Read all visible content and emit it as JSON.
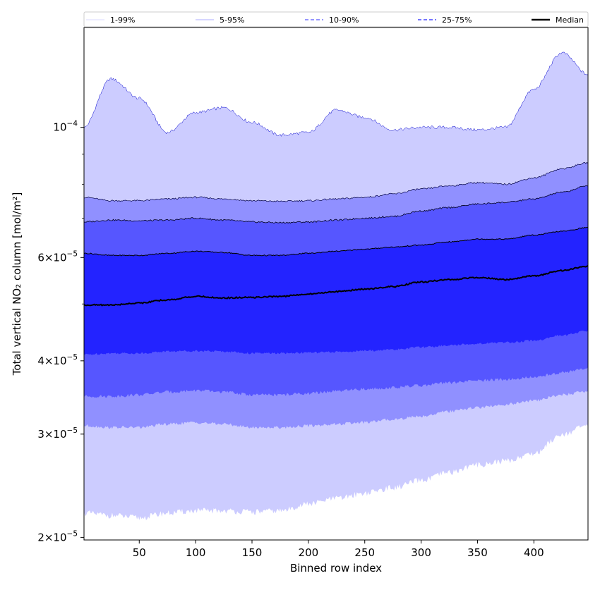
{
  "chart_data": {
    "type": "area",
    "title": "",
    "xlabel": "Binned row index",
    "ylabel": "Total vertical NO₂ column [mol/m²]",
    "yscale": "log",
    "xlim": [
      1,
      448
    ],
    "ylim": [
      1.98e-05,
      0.000148
    ],
    "grid": false,
    "legend_position": "top",
    "x_ticks": [
      {
        "value": 50,
        "label": "50"
      },
      {
        "value": 100,
        "label": "100"
      },
      {
        "value": 150,
        "label": "150"
      },
      {
        "value": 200,
        "label": "200"
      },
      {
        "value": 250,
        "label": "250"
      },
      {
        "value": 300,
        "label": "300"
      },
      {
        "value": 350,
        "label": "350"
      },
      {
        "value": 400,
        "label": "400"
      }
    ],
    "y_ticks": [
      {
        "value": 2e-05,
        "mantissa": "2",
        "exponent": "−5"
      },
      {
        "value": 3e-05,
        "mantissa": "3",
        "exponent": "−5"
      },
      {
        "value": 4e-05,
        "mantissa": "4",
        "exponent": "−5"
      },
      {
        "value": 6e-05,
        "mantissa": "6",
        "exponent": "−5"
      },
      {
        "value": 0.0001,
        "mantissa": "",
        "exponent": "−4"
      }
    ],
    "x": [
      1,
      25,
      50,
      75,
      100,
      125,
      150,
      175,
      200,
      225,
      250,
      275,
      300,
      325,
      350,
      375,
      400,
      425,
      448
    ],
    "bands": [
      {
        "name": "1-99%",
        "color": "#ccccff",
        "edge": "#0000cc",
        "edge_width": 0.5,
        "dash": "",
        "lower": [
          2.2e-05,
          2.18e-05,
          2.16e-05,
          2.2e-05,
          2.22e-05,
          2.22e-05,
          2.21e-05,
          2.22e-05,
          2.28e-05,
          2.33e-05,
          2.38e-05,
          2.43e-05,
          2.5e-05,
          2.58e-05,
          2.66e-05,
          2.7e-05,
          2.78e-05,
          3e-05,
          3.1e-05
        ],
        "upper": [
          0.0001,
          0.000121,
          0.000112,
          9.8e-05,
          0.000106,
          0.000108,
          0.000102,
          9.7e-05,
          9.8e-05,
          0.000107,
          0.000104,
          9.9e-05,
          0.0001,
          0.0001,
          9.9e-05,
          0.0001,
          0.000116,
          0.000134,
          0.000123
        ]
      },
      {
        "name": "5-95%",
        "color": "#9090ff",
        "edge": "#000044",
        "edge_width": 0.7,
        "dash": "",
        "lower": [
          3.1e-05,
          3.08e-05,
          3.08e-05,
          3.12e-05,
          3.14e-05,
          3.12e-05,
          3.08e-05,
          3.08e-05,
          3.1e-05,
          3.12e-05,
          3.14e-05,
          3.18e-05,
          3.22e-05,
          3.28e-05,
          3.33e-05,
          3.37e-05,
          3.42e-05,
          3.5e-05,
          3.55e-05
        ],
        "upper": [
          7.6e-05,
          7.5e-05,
          7.5e-05,
          7.55e-05,
          7.6e-05,
          7.55e-05,
          7.5e-05,
          7.48e-05,
          7.5e-05,
          7.55e-05,
          7.6e-05,
          7.7e-05,
          7.85e-05,
          7.95e-05,
          8.05e-05,
          8e-05,
          8.2e-05,
          8.5e-05,
          8.7e-05
        ]
      },
      {
        "name": "10-90%",
        "color": "#5656ff",
        "edge": "#000022",
        "edge_width": 0.8,
        "dash": "",
        "lower": [
          3.48e-05,
          3.48e-05,
          3.5e-05,
          3.54e-05,
          3.56e-05,
          3.54e-05,
          3.5e-05,
          3.5e-05,
          3.52e-05,
          3.55e-05,
          3.58e-05,
          3.6e-05,
          3.63e-05,
          3.67e-05,
          3.7e-05,
          3.72e-05,
          3.75e-05,
          3.82e-05,
          3.88e-05
        ],
        "upper": [
          6.9e-05,
          6.95e-05,
          6.93e-05,
          6.95e-05,
          7e-05,
          6.95e-05,
          6.9e-05,
          6.88e-05,
          6.9e-05,
          6.95e-05,
          7e-05,
          7.05e-05,
          7.2e-05,
          7.3e-05,
          7.4e-05,
          7.45e-05,
          7.55e-05,
          7.75e-05,
          7.95e-05
        ]
      },
      {
        "name": "25-75%",
        "color": "#2323ff",
        "edge": "#000000",
        "edge_width": 1.0,
        "dash": "",
        "lower": [
          4.1e-05,
          4.12e-05,
          4.12e-05,
          4.15e-05,
          4.16e-05,
          4.15e-05,
          4.12e-05,
          4.12e-05,
          4.13e-05,
          4.14e-05,
          4.16e-05,
          4.18e-05,
          4.22e-05,
          4.25e-05,
          4.28e-05,
          4.3e-05,
          4.33e-05,
          4.42e-05,
          4.5e-05
        ],
        "upper": [
          6.1e-05,
          6.05e-05,
          6.05e-05,
          6.1e-05,
          6.15e-05,
          6.12e-05,
          6.05e-05,
          6.05e-05,
          6.1e-05,
          6.15e-05,
          6.2e-05,
          6.25e-05,
          6.3e-05,
          6.38e-05,
          6.45e-05,
          6.45e-05,
          6.55e-05,
          6.65e-05,
          6.75e-05
        ]
      }
    ],
    "median": {
      "name": "Median",
      "color": "#000000",
      "values": [
        4.98e-05,
        4.98e-05,
        5.02e-05,
        5.08e-05,
        5.15e-05,
        5.12e-05,
        5.13e-05,
        5.15e-05,
        5.2e-05,
        5.25e-05,
        5.3e-05,
        5.35e-05,
        5.45e-05,
        5.5e-05,
        5.55e-05,
        5.5e-05,
        5.58e-05,
        5.7e-05,
        5.8e-05
      ]
    },
    "legend": [
      {
        "label": "1-99%",
        "color": "#ccccff",
        "dash": "",
        "width": 0.8
      },
      {
        "label": "5-95%",
        "color": "#9090ff",
        "dash": "",
        "width": 0.8
      },
      {
        "label": "10-90%",
        "color": "#5656ff",
        "dash": "5,3",
        "width": 1.2
      },
      {
        "label": "25-75%",
        "color": "#2323ff",
        "dash": "5,3",
        "width": 1.2
      },
      {
        "label": "Median",
        "color": "#000000",
        "dash": "",
        "width": 2.5
      }
    ]
  }
}
